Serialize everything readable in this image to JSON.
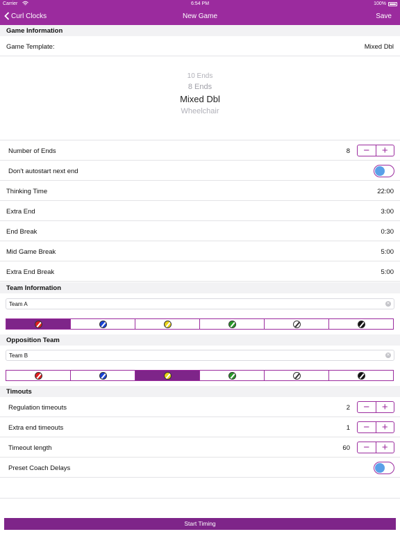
{
  "status_bar": {
    "carrier": "Carrier",
    "time": "6:54 PM",
    "battery": "100%"
  },
  "nav": {
    "back_label": "Curl Clocks",
    "title": "New Game",
    "save_label": "Save"
  },
  "game_info": {
    "header": "Game Information",
    "template_label": "Game Template:",
    "template_value": "Mixed Dbl",
    "picker_options": [
      "10 Ends",
      "8 Ends",
      "Mixed Dbl",
      "Wheelchair"
    ],
    "number_of_ends_label": "Number of Ends",
    "number_of_ends_value": "8",
    "autostart_label": "Don't autostart next end",
    "thinking_time_label": "Thinking Time",
    "thinking_time_value": "22:00",
    "extra_end_label": "Extra End",
    "extra_end_value": "3:00",
    "end_break_label": "End Break",
    "end_break_value": "0:30",
    "mid_game_break_label": "Mid Game Break",
    "mid_game_break_value": "5:00",
    "extra_end_break_label": "Extra End Break",
    "extra_end_break_value": "5:00"
  },
  "team": {
    "header": "Team Information",
    "name_value": "Team A",
    "selected_color_index": 0
  },
  "opposition": {
    "header": "Opposition Team",
    "name_value": "Team B",
    "selected_color_index": 2
  },
  "stone_colors": [
    {
      "name": "red",
      "hex": "#e02020"
    },
    {
      "name": "blue",
      "hex": "#1a44d6"
    },
    {
      "name": "yellow",
      "hex": "#e8d21a"
    },
    {
      "name": "green",
      "hex": "#2a9a2a"
    },
    {
      "name": "white",
      "hex": "#ffffff"
    },
    {
      "name": "black",
      "hex": "#111111"
    }
  ],
  "timeouts": {
    "header": "Timouts",
    "regulation_label": "Regulation timeouts",
    "regulation_value": "2",
    "extra_end_label": "Extra end timeouts",
    "extra_end_value": "1",
    "length_label": "Timeout length",
    "length_value": "60",
    "preset_label": "Preset Coach Delays"
  },
  "start_button_label": "Start Timing",
  "stepper_minus": "−",
  "stepper_plus": "+",
  "clear_glyph": "✕",
  "theme": {
    "accent": "#9b2b9e",
    "accent_dark": "#7e2589",
    "toggle_knob": "#5aa0e8"
  }
}
